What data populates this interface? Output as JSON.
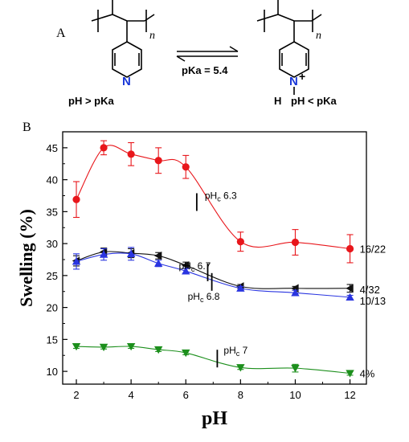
{
  "scheme": {
    "panel_label": "A",
    "left_condition": "pH > pKa",
    "right_condition": "pH < pKa",
    "equilibrium_label": "pKa = 5.4",
    "repeat_subscript": "n",
    "n_atom": "N",
    "h_atom": "H",
    "plus_sign": "+"
  },
  "chart_data": {
    "type": "scatter",
    "panel_label": "B",
    "title": "",
    "xlabel": "pH",
    "ylabel": "Swelling (%)",
    "xlim": [
      1.5,
      12.6
    ],
    "ylim": [
      8,
      47.5
    ],
    "xticks": [
      2,
      4,
      6,
      8,
      10,
      12
    ],
    "yticks": [
      10,
      15,
      20,
      25,
      30,
      35,
      40,
      45
    ],
    "grid": false,
    "legend": "none",
    "x": [
      2,
      3,
      4,
      5,
      6,
      8,
      10,
      12
    ],
    "series": [
      {
        "name": "16/22",
        "color": "#e8161b",
        "marker": "circle",
        "values": [
          36.9,
          45.0,
          44.0,
          43.0,
          42.0,
          30.3,
          30.2,
          29.2
        ],
        "errors": [
          2.8,
          1.1,
          1.8,
          2.0,
          1.8,
          1.5,
          2.0,
          2.2
        ]
      },
      {
        "name": "4/32",
        "color": "#111111",
        "marker": "left-triangle",
        "values": [
          27.3,
          28.7,
          28.5,
          28.1,
          26.6,
          23.3,
          23.0,
          23.0
        ],
        "errors": [
          0.8,
          0.6,
          0.7,
          0.5,
          0.5,
          0.3,
          0.3,
          0.6
        ]
      },
      {
        "name": "10/13",
        "color": "#2a35e0",
        "marker": "up-triangle",
        "values": [
          27.2,
          28.3,
          28.4,
          26.9,
          25.7,
          23.0,
          22.3,
          21.6
        ],
        "errors": [
          1.2,
          0.9,
          1.0,
          0.5,
          0.4,
          0.3,
          0.4,
          0.3
        ]
      },
      {
        "name": "4%",
        "color": "#1c8f1c",
        "marker": "down-triangle",
        "values": [
          13.9,
          13.8,
          13.9,
          13.4,
          12.9,
          10.6,
          10.5,
          9.7
        ],
        "errors": [
          0.3,
          0.3,
          0.3,
          0.3,
          0.3,
          0.3,
          0.6,
          0.3
        ]
      }
    ],
    "annotations": [
      {
        "label": "pH",
        "subscript": "c",
        "value": "6.3",
        "x": 6.4,
        "y": 36.5
      },
      {
        "label": "pH",
        "subscript": "c",
        "value": "6.7",
        "x": 6.8,
        "y": 25.5
      },
      {
        "label": "pH",
        "subscript": "c",
        "value": "6.8",
        "x": 6.95,
        "y": 24.0
      },
      {
        "label": "pH",
        "subscript": "c",
        "value": "7",
        "x": 7.15,
        "y": 12.0
      }
    ]
  }
}
